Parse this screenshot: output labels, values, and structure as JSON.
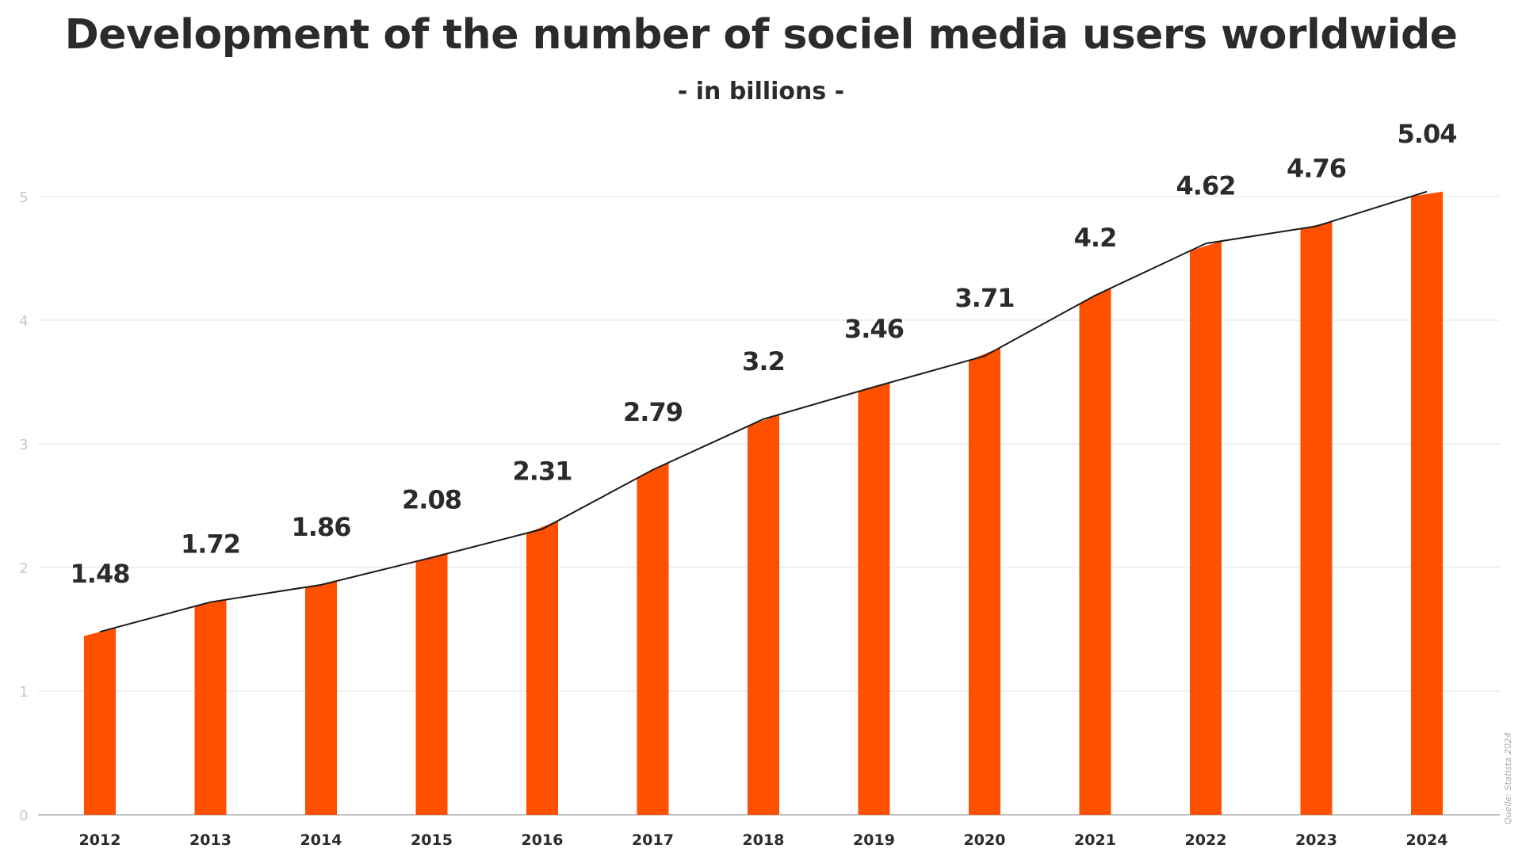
{
  "chart_data": {
    "type": "bar",
    "title": "Development of the number of sociel media users worldwide",
    "subtitle": "- in billions -",
    "categories": [
      "2012",
      "2013",
      "2014",
      "2015",
      "2016",
      "2017",
      "2018",
      "2019",
      "2020",
      "2021",
      "2022",
      "2023",
      "2024"
    ],
    "values": [
      1.48,
      1.72,
      1.86,
      2.08,
      2.31,
      2.79,
      3.2,
      3.46,
      3.71,
      4.2,
      4.62,
      4.76,
      5.04
    ],
    "data_labels": [
      "1.48",
      "1.72",
      "1.86",
      "2.08",
      "2.31",
      "2.79",
      "3.2",
      "3.46",
      "3.71",
      "4.2",
      "4.62",
      "4.76",
      "5.04"
    ],
    "overlay": "line connecting bar values",
    "xlabel": "",
    "ylabel": "",
    "ylim": [
      0,
      5
    ],
    "yticks": [
      "0",
      "1",
      "2",
      "3",
      "4",
      "5"
    ],
    "grid": true,
    "legend": "none",
    "colors": {
      "bar": "#ff5000",
      "line": "#1a1a1a",
      "grid": "#e3e3e3",
      "text": "#2b2b2b",
      "tick": "#c8c8c8"
    },
    "source": "Quelle: Statista 2024"
  }
}
